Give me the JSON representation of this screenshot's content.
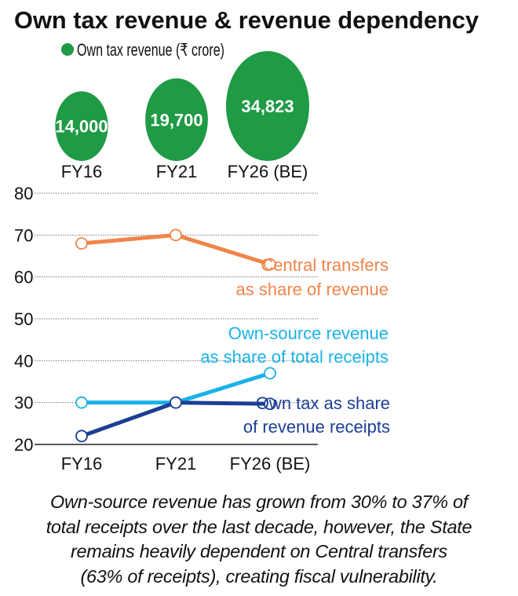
{
  "title": "Own tax revenue & revenue dependency",
  "caption": "Own-source revenue has grown from 30% to 37% of total receipts over the last decade, however, the State remains heavily dependent on Central transfers (63% of receipts), creating fiscal vulnerability.",
  "caption_lines": [
    "Own-source revenue has grown from 30% to 37% of",
    "total receipts over the last decade, however, the State",
    "remains heavily dependent on Central transfers",
    "(63% of receipts), creating fiscal vulnerability."
  ],
  "chart_data": [
    {
      "type": "bubble",
      "legend": "Own tax revenue (₹ crore)",
      "categories": [
        "FY16",
        "FY21",
        "FY26 (BE)"
      ],
      "values": [
        14000,
        19700,
        34823
      ],
      "labels": [
        "14,000",
        "19,700",
        "34,823"
      ],
      "color": "#1f9a45"
    },
    {
      "type": "line",
      "categories": [
        "FY16",
        "FY21",
        "FY26 (BE)"
      ],
      "ylim": [
        20,
        80
      ],
      "yticks": [
        20,
        30,
        40,
        50,
        60,
        70,
        80
      ],
      "grid": true,
      "series": [
        {
          "name": "Central transfers as share of revenue",
          "label_lines": [
            "Central transfers",
            "as share of revenue"
          ],
          "values": [
            68,
            70,
            63
          ],
          "color": "#f0854a"
        },
        {
          "name": "Own-source revenue as share of total receipts",
          "label_lines": [
            "Own-source revenue",
            "as share of total receipts"
          ],
          "values": [
            30,
            30,
            37
          ],
          "color": "#1ab2e8"
        },
        {
          "name": "Own tax as share of revenue receipts",
          "label_lines": [
            "Own tax as share",
            "of revenue receipts"
          ],
          "values": [
            22,
            30,
            29.7
          ],
          "color": "#1c3f94"
        }
      ]
    }
  ]
}
